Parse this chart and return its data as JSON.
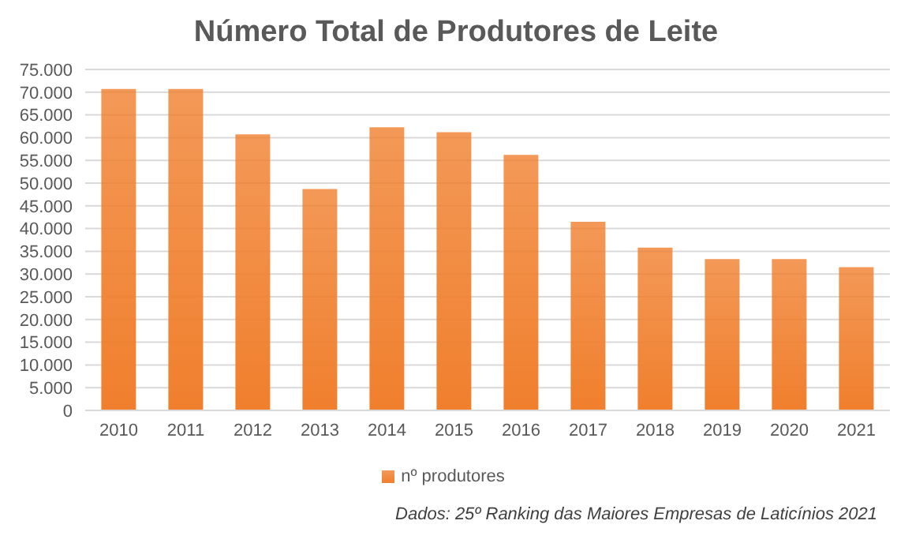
{
  "chart_data": {
    "type": "bar",
    "title": "Número Total de Produtores de Leite",
    "categories": [
      "2010",
      "2011",
      "2012",
      "2013",
      "2014",
      "2015",
      "2016",
      "2017",
      "2018",
      "2019",
      "2020",
      "2021"
    ],
    "series": [
      {
        "name": "nº produtores",
        "color": "#f07f2d",
        "values": [
          70700,
          70700,
          60700,
          48700,
          62300,
          61200,
          56200,
          41500,
          35800,
          33300,
          33300,
          31500
        ]
      }
    ],
    "ylim": [
      0,
      75000
    ],
    "yticks": [
      {
        "value": 0,
        "label": "0"
      },
      {
        "value": 5000,
        "label": "5.000"
      },
      {
        "value": 10000,
        "label": "10.000"
      },
      {
        "value": 15000,
        "label": "15.000"
      },
      {
        "value": 20000,
        "label": "20.000"
      },
      {
        "value": 25000,
        "label": "25.000"
      },
      {
        "value": 30000,
        "label": "30.000"
      },
      {
        "value": 35000,
        "label": "35.000"
      },
      {
        "value": 40000,
        "label": "40.000"
      },
      {
        "value": 45000,
        "label": "45.000"
      },
      {
        "value": 50000,
        "label": "50.000"
      },
      {
        "value": 55000,
        "label": "55.000"
      },
      {
        "value": 60000,
        "label": "60.000"
      },
      {
        "value": 65000,
        "label": "65.000"
      },
      {
        "value": 70000,
        "label": "70.000"
      },
      {
        "value": 75000,
        "label": "75.000"
      }
    ],
    "grid": "y",
    "legend": "bottom",
    "annotations": [
      "Dados: 25º Ranking das Maiores Empresas de Laticínios 2021"
    ]
  }
}
